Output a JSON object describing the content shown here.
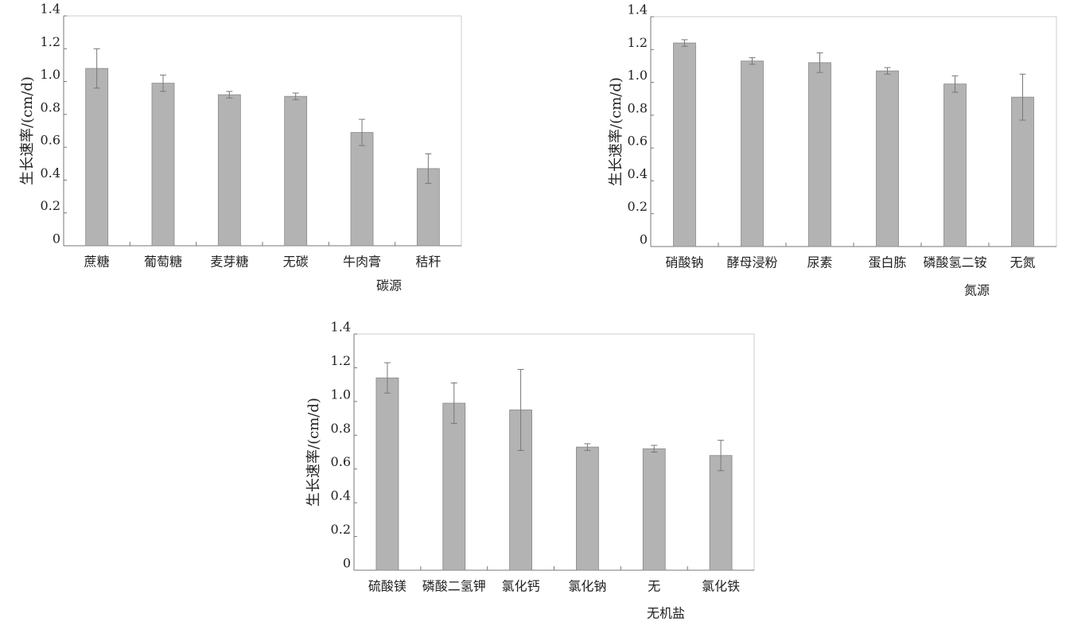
{
  "chart_data": [
    {
      "type": "bar",
      "x_label": "碳源",
      "y_label": "生长速率/(cm/d)",
      "categories": [
        "蔗糖",
        "葡萄糖",
        "麦芽糖",
        "无碳",
        "牛肉膏",
        "秸秆"
      ],
      "values": [
        1.08,
        0.99,
        0.92,
        0.91,
        0.69,
        0.47
      ],
      "errors": [
        0.12,
        0.05,
        0.02,
        0.02,
        0.08,
        0.09
      ],
      "color": "#b3b3b3",
      "ylim": [
        0,
        1.4
      ],
      "yticks": [
        0,
        0.2,
        0.4,
        0.6,
        0.8,
        {
          "value": 1,
          "label": "1.0"
        },
        1.2,
        1.4
      ]
    },
    {
      "type": "bar",
      "x_label": "氮源",
      "y_label": "生长速率/(cm/d)",
      "categories": [
        "硝酸钠",
        "酵母浸粉",
        "尿素",
        "蛋白胨",
        "磷酸氢二铵",
        "无氮"
      ],
      "values": [
        1.24,
        1.13,
        1.12,
        1.07,
        0.99,
        0.91
      ],
      "errors": [
        0.02,
        0.02,
        0.06,
        0.02,
        0.05,
        0.14
      ],
      "color": "#b3b3b3",
      "ylim": [
        0,
        1.4
      ],
      "yticks": [
        0,
        0.2,
        0.4,
        0.6,
        0.8,
        {
          "value": 1,
          "label": "1.0"
        },
        1.2,
        1.4
      ]
    },
    {
      "type": "bar",
      "x_label": "无机盐",
      "y_label": "生长速率/(cm/d)",
      "categories": [
        "硫酸镁",
        "磷酸二氢钾",
        "氯化钙",
        "氯化钠",
        "无",
        "氯化铁"
      ],
      "values": [
        1.14,
        0.99,
        0.95,
        0.73,
        0.72,
        0.68
      ],
      "errors": [
        0.09,
        0.12,
        0.24,
        0.02,
        0.02,
        0.09
      ],
      "color": "#b3b3b3",
      "ylim": [
        0,
        1.4
      ],
      "yticks": [
        0,
        0.2,
        0.4,
        0.6,
        0.8,
        {
          "value": 1,
          "label": "1.0"
        },
        1.2,
        1.4
      ]
    }
  ]
}
